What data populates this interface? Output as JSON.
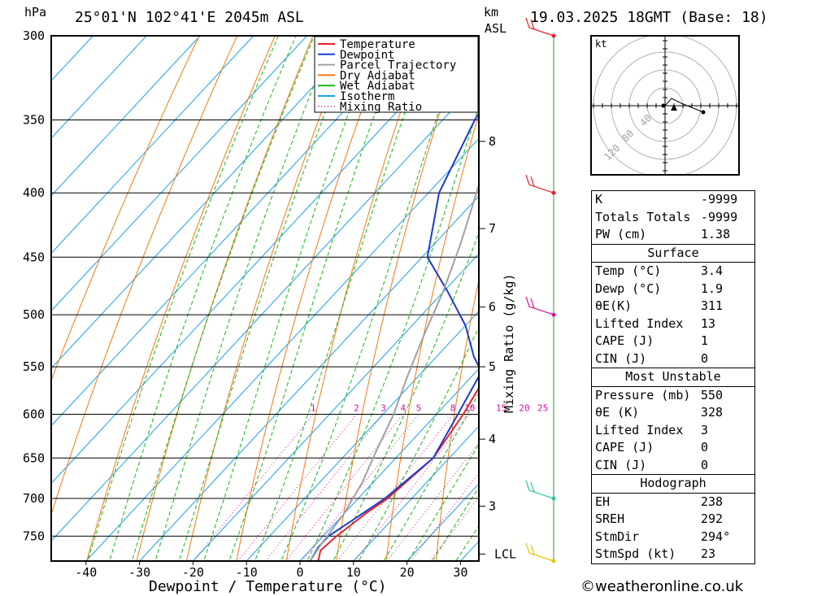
{
  "header": {
    "pressure_unit": "hPa",
    "location": "25°01'N  102°41'E  2045m  ASL",
    "km_unit": "km",
    "asl_unit": "ASL",
    "datetime": "19.03.2025  18GMT  (Base: 18)"
  },
  "chart_data": {
    "type": "line",
    "title": "",
    "xlabel": "Dewpoint / Temperature (°C)",
    "ylabel": "hPa",
    "right_axis_label": "Mixing Ratio (g/kg)",
    "xlim": [
      -46,
      34
    ],
    "ylim": [
      785,
      300
    ],
    "pressure_ticks": [
      300,
      350,
      400,
      450,
      500,
      550,
      600,
      650,
      700,
      750
    ],
    "temp_ticks": [
      -40,
      -30,
      -20,
      -10,
      0,
      10,
      20,
      30
    ],
    "km_ticks": [
      {
        "label": "8",
        "p": 364
      },
      {
        "label": "7",
        "p": 427
      },
      {
        "label": "6",
        "p": 493
      },
      {
        "label": "5",
        "p": 550
      },
      {
        "label": "4",
        "p": 628
      },
      {
        "label": "3",
        "p": 710
      },
      {
        "label": "LCL",
        "p": 775
      }
    ],
    "mixing_ratio_labels": [
      "1",
      "2",
      "3",
      "4",
      "5",
      "8",
      "10",
      "15",
      "20",
      "25"
    ],
    "mixing_ratio_values": [
      1,
      2,
      3,
      4,
      5,
      8,
      10,
      15,
      20,
      25
    ],
    "legend": [
      {
        "name": "Temperature",
        "color": "#e8242a",
        "style": "solid"
      },
      {
        "name": "Dewpoint",
        "color": "#1a3ccd",
        "style": "solid"
      },
      {
        "name": "Parcel Trajectory",
        "color": "#a0a0a0",
        "style": "solid"
      },
      {
        "name": "Dry Adiabat",
        "color": "#f07a10",
        "style": "solid"
      },
      {
        "name": "Wet Adiabat",
        "color": "#19b619",
        "style": "solid"
      },
      {
        "name": "Isotherm",
        "color": "#1aa0e8",
        "style": "solid"
      },
      {
        "name": "Mixing Ratio",
        "color": "#e0109b",
        "style": "dotted"
      }
    ],
    "legend_position": "top-right",
    "series": [
      {
        "name": "Temperature",
        "color": "#e8242a",
        "points": [
          [
            3.4,
            785
          ],
          [
            2,
            770
          ],
          [
            2.5,
            750
          ],
          [
            4,
            720
          ],
          [
            5.5,
            700
          ],
          [
            7,
            650
          ],
          [
            5,
            600
          ],
          [
            2,
            550
          ],
          [
            0,
            500
          ],
          [
            -3,
            470
          ],
          [
            -6,
            450
          ],
          [
            -11,
            420
          ],
          [
            -14,
            400
          ],
          [
            -19,
            370
          ],
          [
            -22,
            350
          ],
          [
            -27,
            325
          ],
          [
            -30,
            300
          ]
        ]
      },
      {
        "name": "Dewpoint",
        "color": "#1a3ccd",
        "points": [
          [
            1.9,
            785
          ],
          [
            1,
            765
          ],
          [
            1,
            750
          ],
          [
            3,
            725
          ],
          [
            5,
            700
          ],
          [
            7,
            650
          ],
          [
            4,
            600
          ],
          [
            1,
            555
          ],
          [
            -3,
            540
          ],
          [
            -10,
            510
          ],
          [
            -19,
            480
          ],
          [
            -29,
            450
          ],
          [
            -38,
            400
          ],
          [
            -44,
            350
          ],
          [
            -49,
            300
          ]
        ]
      },
      {
        "name": "Parcel Trajectory",
        "color": "#a0a0a0",
        "points": [
          [
            1.9,
            785
          ],
          [
            1,
            760
          ],
          [
            0,
            720
          ],
          [
            -2,
            680
          ],
          [
            -5,
            640
          ],
          [
            -8,
            600
          ],
          [
            -12,
            560
          ],
          [
            -16,
            520
          ],
          [
            -20,
            480
          ],
          [
            -25,
            440
          ],
          [
            -31,
            400
          ],
          [
            -38,
            360
          ],
          [
            -46,
            320
          ],
          [
            -51,
            300
          ]
        ]
      }
    ],
    "wind_barbs": [
      {
        "p": 300,
        "color": "#e8242a"
      },
      {
        "p": 400,
        "color": "#e8242a"
      },
      {
        "p": 500,
        "color": "#e0109b"
      },
      {
        "p": 700,
        "color": "#29c89a"
      },
      {
        "p": 785,
        "color": "#e8c800"
      }
    ]
  },
  "hodograph": {
    "unit": "kt",
    "ring_labels": [
      "40",
      "80",
      "120"
    ]
  },
  "indices": {
    "basic": [
      {
        "label": "K",
        "value": "-9999"
      },
      {
        "label": "Totals Totals",
        "value": "-9999"
      },
      {
        "label": "PW (cm)",
        "value": "1.38"
      }
    ],
    "surface_title": "Surface",
    "surface": [
      {
        "label": "Temp (°C)",
        "value": "3.4"
      },
      {
        "label": "Dewp (°C)",
        "value": "1.9"
      },
      {
        "label": "θE(K)",
        "value": "311"
      },
      {
        "label": "Lifted Index",
        "value": "13"
      },
      {
        "label": "CAPE (J)",
        "value": "1"
      },
      {
        "label": "CIN (J)",
        "value": "0"
      }
    ],
    "unstable_title": "Most Unstable",
    "unstable": [
      {
        "label": "Pressure (mb)",
        "value": "550"
      },
      {
        "label": "θE (K)",
        "value": "328"
      },
      {
        "label": "Lifted Index",
        "value": "3"
      },
      {
        "label": "CAPE (J)",
        "value": "0"
      },
      {
        "label": "CIN (J)",
        "value": "0"
      }
    ],
    "hodo_title": "Hodograph",
    "hodo": [
      {
        "label": "EH",
        "value": "238"
      },
      {
        "label": "SREH",
        "value": "292"
      },
      {
        "label": "StmDir",
        "value": "294°"
      },
      {
        "label": "StmSpd (kt)",
        "value": "23"
      }
    ]
  },
  "footer": {
    "copyright": "©weatheronline.co.uk"
  }
}
